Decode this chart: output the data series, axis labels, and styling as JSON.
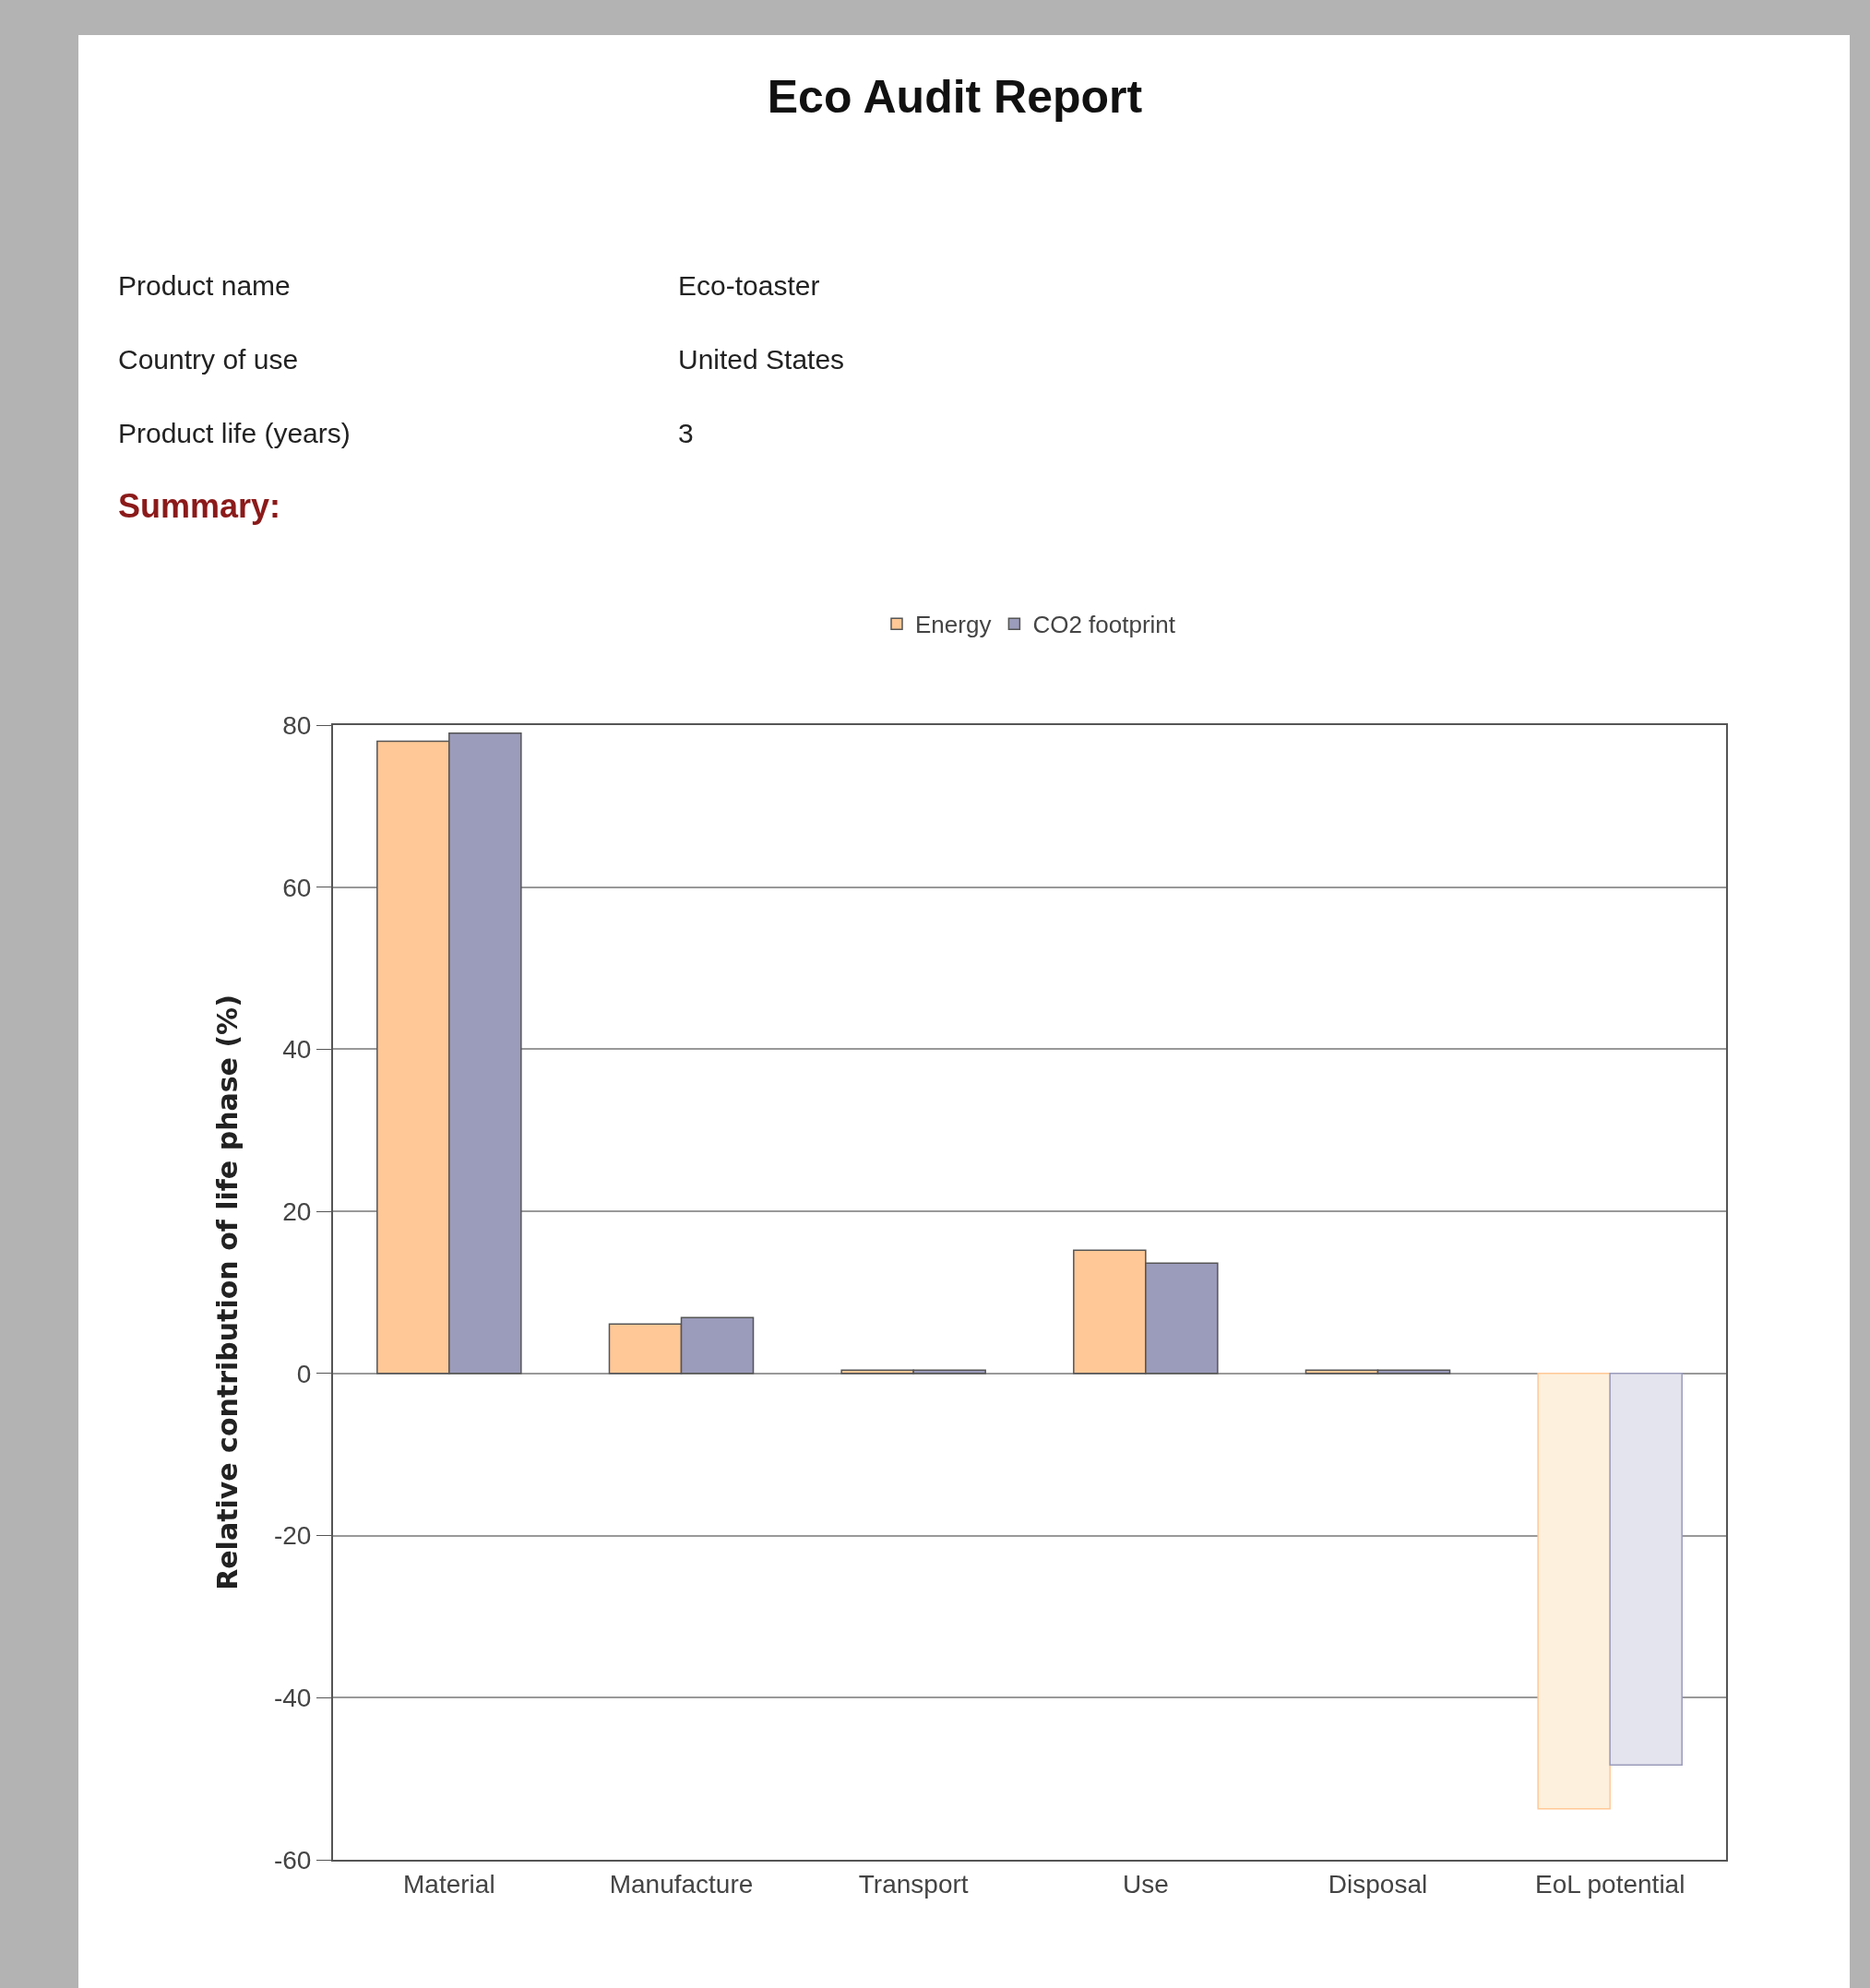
{
  "chart_data": {
    "type": "bar",
    "title": "Eco Audit Report",
    "ylabel": "Relative contribution of life phase (%)",
    "annotations": [
      "Product name",
      "Eco-toaster",
      "Country of use",
      "United States",
      "Product life (years)",
      "3",
      "Summary:"
    ],
    "categories": [
      "Material",
      "Manufacture",
      "Transport",
      "Use",
      "Disposal",
      "EoL potential"
    ],
    "series": [
      {
        "name": "Energy",
        "color": "#ffc896",
        "colors": [
          "#ffc896",
          "#ffc896",
          "#ffc896",
          "#ffc896",
          "#ffc896",
          "#fdf0dc"
        ],
        "values": [
          78,
          6.1,
          0.4,
          15.2,
          0.4,
          -53.7
        ]
      },
      {
        "name": "CO2 footprint",
        "color": "#9b9bbb",
        "colors": [
          "#9b9bbb",
          "#9b9bbb",
          "#9b9bbb",
          "#9b9bbb",
          "#9b9bbb",
          "#e4e4ee"
        ],
        "values": [
          79,
          6.9,
          0.4,
          13.6,
          0.4,
          -48.3
        ]
      }
    ],
    "ylim": [
      -60,
      80
    ],
    "yticks": [
      -60,
      -40,
      -20,
      0,
      20,
      40,
      60,
      80
    ],
    "grid": "y",
    "legend": "top"
  }
}
